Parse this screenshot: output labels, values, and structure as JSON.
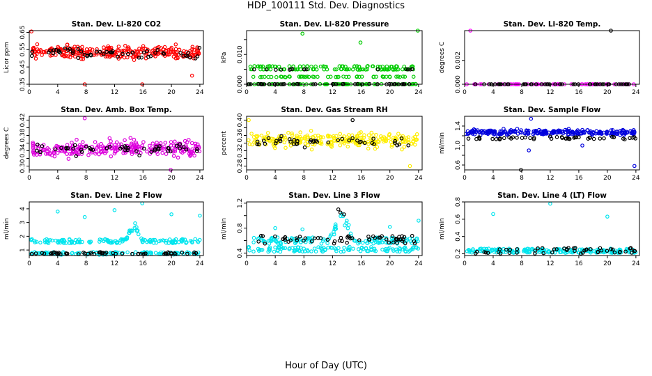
{
  "figure": {
    "title": "HDP_100111  Std. Dev. Diagnostics",
    "xlabel": "Hour of Day (UTC)"
  },
  "chart_data": [
    {
      "type": "scatter",
      "title": "Stan. Dev. Li-820 CO2",
      "ylabel": "Licor ppm",
      "xlim": [
        0,
        24.5
      ],
      "ylim": [
        0.35,
        0.66
      ],
      "xticks": [
        0,
        4,
        8,
        12,
        16,
        20,
        24
      ],
      "yticks": [
        0.35,
        0.45,
        0.55,
        0.65
      ],
      "ytick_labels": [
        "0.35",
        "0.45",
        "0.55",
        "0.65"
      ],
      "colors": {
        "main": "#ff0000",
        "overlay": "#000000"
      },
      "series": [
        {
          "color": "main",
          "base": 0.535,
          "spread": 0.07,
          "n": 260,
          "outliers": [
            [
              0.3,
              0.655
            ],
            [
              7.8,
              0.35
            ],
            [
              15.9,
              0.35
            ],
            [
              22.9,
              0.4
            ]
          ]
        },
        {
          "color": "overlay",
          "base": 0.53,
          "spread": 0.05,
          "n": 55,
          "outliers": []
        }
      ]
    },
    {
      "type": "scatter",
      "title": "Stan. Dev. Li-820 Pressure",
      "ylabel": "kPa",
      "xlim": [
        0,
        24.5
      ],
      "ylim": [
        0,
        0.018
      ],
      "xticks": [
        0,
        4,
        8,
        12,
        16,
        20,
        24
      ],
      "yticks": [
        0,
        0.005,
        0.01,
        0.015
      ],
      "ytick_labels": [
        "0.000",
        "",
        "0.010",
        ""
      ],
      "colors": {
        "main": "#00cc00",
        "overlay": "#000000"
      },
      "series": [
        {
          "color": "main",
          "levels": [
            0,
            0.0025,
            0.005,
            0.006
          ],
          "n": 260,
          "outliers": [
            [
              7.8,
              0.017
            ],
            [
              15.9,
              0.014
            ],
            [
              23.9,
              0.018
            ]
          ]
        },
        {
          "color": "overlay",
          "levels": [
            0,
            0,
            0,
            0.005
          ],
          "n": 60,
          "outliers": []
        }
      ]
    },
    {
      "type": "scatter",
      "title": "Stan. Dev. Li-820 Temp.",
      "ylabel": "degrees C",
      "xlim": [
        0,
        24.5
      ],
      "ylim": [
        0,
        0.0045
      ],
      "xticks": [
        0,
        4,
        8,
        12,
        16,
        20,
        24
      ],
      "yticks": [
        0,
        0.002
      ],
      "ytick_labels": [
        "0.000",
        "0.002"
      ],
      "colors": {
        "main": "#ff00ff",
        "overlay": "#000000"
      },
      "series": [
        {
          "color": "main",
          "levels": [
            0
          ],
          "n": 70,
          "outliers": [
            [
              0.3,
              0
            ],
            [
              0.8,
              0.0045
            ],
            [
              20.2,
              0
            ]
          ]
        },
        {
          "color": "overlay",
          "levels": [
            0
          ],
          "n": 50,
          "outliers": [
            [
              20.5,
              0.0045
            ]
          ]
        }
      ]
    },
    {
      "type": "scatter",
      "title": "Stan. Dev. Amb. Box Temp.",
      "ylabel": "degrees C",
      "xlim": [
        0,
        24.5
      ],
      "ylim": [
        0.29,
        0.43
      ],
      "xticks": [
        0,
        4,
        8,
        12,
        16,
        20,
        24
      ],
      "yticks": [
        0.3,
        0.32,
        0.34,
        0.36,
        0.38,
        0.4,
        0.42
      ],
      "ytick_labels": [
        "0.30",
        "",
        "0.34",
        "",
        "0.38",
        "",
        "0.42"
      ],
      "colors": {
        "main": "#dd00dd",
        "overlay": "#000000"
      },
      "series": [
        {
          "color": "main",
          "base": 0.345,
          "spread": 0.035,
          "n": 260,
          "outliers": [
            [
              7.8,
              0.425
            ],
            [
              19.9,
              0.29
            ]
          ]
        },
        {
          "color": "overlay",
          "base": 0.345,
          "spread": 0.025,
          "n": 50,
          "outliers": []
        }
      ]
    },
    {
      "type": "scatter",
      "title": "Stan. Dev. Gas Stream RH",
      "ylabel": "percent",
      "xlim": [
        0,
        24.5
      ],
      "ylim": [
        0.27,
        0.41
      ],
      "xticks": [
        0,
        4,
        8,
        12,
        16,
        20,
        24
      ],
      "yticks": [
        0.28,
        0.3,
        0.32,
        0.34,
        0.36,
        0.38,
        0.4
      ],
      "ytick_labels": [
        "0.28",
        "",
        "0.32",
        "",
        "0.36",
        "",
        "0.40"
      ],
      "colors": {
        "main": "#ffee00",
        "overlay": "#000000"
      },
      "series": [
        {
          "color": "main",
          "base": 0.348,
          "spread": 0.03,
          "n": 260,
          "outliers": [
            [
              0.3,
              0.4
            ],
            [
              22.8,
              0.28
            ]
          ]
        },
        {
          "color": "overlay",
          "base": 0.345,
          "spread": 0.02,
          "n": 45,
          "outliers": [
            [
              14.8,
              0.4
            ]
          ]
        }
      ]
    },
    {
      "type": "scatter",
      "title": "Stan. Dev. Sample Flow",
      "ylabel": "ml/min",
      "xlim": [
        0,
        24.5
      ],
      "ylim": [
        0.5,
        1.6
      ],
      "xticks": [
        0,
        4,
        8,
        12,
        16,
        20,
        24
      ],
      "yticks": [
        0.6,
        0.8,
        1.0,
        1.2,
        1.4
      ],
      "ytick_labels": [
        "0.6",
        "",
        "1.0",
        "",
        "1.4"
      ],
      "colors": {
        "main": "#0000dd",
        "overlay": "#000000"
      },
      "series": [
        {
          "color": "main",
          "base": 1.27,
          "spread": 0.09,
          "n": 260,
          "outliers": [
            [
              9.0,
              0.9
            ],
            [
              9.3,
              1.55
            ],
            [
              16.5,
              1.0
            ],
            [
              23.8,
              0.58
            ]
          ]
        },
        {
          "color": "overlay",
          "base": 1.15,
          "spread": 0.05,
          "n": 50,
          "outliers": [
            [
              7.9,
              0.5
            ]
          ]
        }
      ]
    },
    {
      "type": "scatter",
      "title": "Stan. Dev. Line 2 Flow",
      "ylabel": "ml/min",
      "xlim": [
        0,
        24.5
      ],
      "ylim": [
        0.6,
        4.5
      ],
      "xticks": [
        0,
        4,
        8,
        12,
        16,
        20,
        24
      ],
      "yticks": [
        1,
        2,
        3,
        4
      ],
      "ytick_labels": [
        "1",
        "2",
        "3",
        "4"
      ],
      "colors": {
        "main": "#00e5ee",
        "overlay": "#000000"
      },
      "series": [
        {
          "color": "main",
          "band": [
            1.5,
            1.8
          ],
          "band2": [
            0.65,
            0.85
          ],
          "bump": [
            13.5,
            16,
            3.3
          ],
          "n": 260,
          "outliers": [
            [
              4,
              3.8
            ],
            [
              7.8,
              3.4
            ],
            [
              12,
              3.9
            ],
            [
              15.9,
              4.4
            ],
            [
              20,
              3.6
            ],
            [
              24,
              3.5
            ]
          ]
        },
        {
          "color": "overlay",
          "band": [
            0.7,
            0.85
          ],
          "n": 60,
          "outliers": []
        }
      ]
    },
    {
      "type": "scatter",
      "title": "Stan. Dev. Line 3 Flow",
      "ylabel": "ml/min",
      "xlim": [
        0,
        24.5
      ],
      "ylim": [
        0.36,
        1.22
      ],
      "xticks": [
        0,
        4,
        8,
        12,
        16,
        20,
        24
      ],
      "yticks": [
        0.4,
        0.6,
        0.8,
        1.0,
        1.2
      ],
      "ytick_labels": [
        "0.4",
        "",
        "0.8",
        "",
        "1.2"
      ],
      "colors": {
        "main": "#00e5ee",
        "overlay": "#000000"
      },
      "series": [
        {
          "color": "main",
          "band": [
            0.55,
            0.65
          ],
          "band2": [
            0.42,
            0.5
          ],
          "bump": [
            11.5,
            15,
            1.15
          ],
          "n": 260,
          "outliers": [
            [
              4,
              0.8
            ],
            [
              7.8,
              0.78
            ],
            [
              20,
              0.82
            ],
            [
              24,
              0.92
            ]
          ]
        },
        {
          "color": "overlay",
          "band": [
            0.55,
            0.68
          ],
          "n": 60,
          "outliers": [
            [
              12.8,
              1.1
            ],
            [
              13.1,
              1.05
            ],
            [
              13.6,
              1.02
            ]
          ]
        }
      ]
    },
    {
      "type": "scatter",
      "title": "Stan. Dev. Line 4 (LT) Flow",
      "ylabel": "ml/min",
      "xlim": [
        0,
        24.5
      ],
      "ylim": [
        0.18,
        0.8
      ],
      "xticks": [
        0,
        4,
        8,
        12,
        16,
        20,
        24
      ],
      "yticks": [
        0.2,
        0.4,
        0.6,
        0.8
      ],
      "ytick_labels": [
        "0.2",
        "0.4",
        "0.6",
        "0.8"
      ],
      "colors": {
        "main": "#00e5ee",
        "overlay": "#000000"
      },
      "series": [
        {
          "color": "main",
          "band": [
            0.21,
            0.26
          ],
          "n": 200,
          "outliers": [
            [
              4,
              0.66
            ],
            [
              12,
              0.78
            ],
            [
              20,
              0.63
            ]
          ]
        },
        {
          "color": "overlay",
          "band": [
            0.2,
            0.27
          ],
          "n": 50,
          "outliers": []
        }
      ]
    }
  ]
}
